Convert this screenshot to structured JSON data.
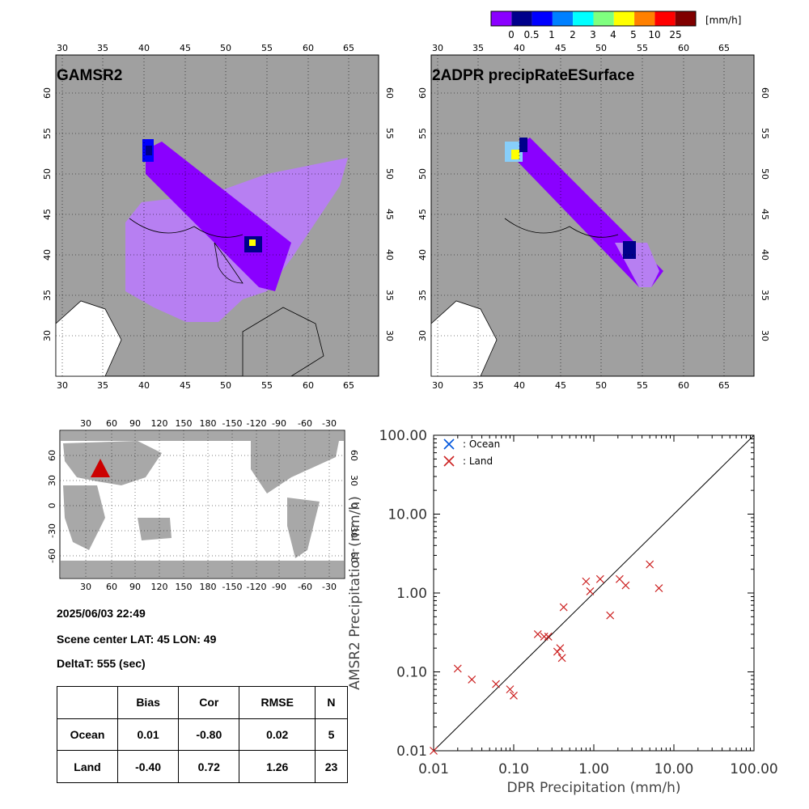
{
  "colorbar": {
    "unit_label": "[mm/h]",
    "tick_labels": [
      "0",
      "0.5",
      "1",
      "2",
      "3",
      "4",
      "5",
      "10",
      "25"
    ],
    "colors": [
      "#8a00ff",
      "#00008b",
      "#0000ff",
      "#0080ff",
      "#00ffff",
      "#7fff7f",
      "#ffff00",
      "#ff8000",
      "#ff0000",
      "#800000"
    ]
  },
  "map_left": {
    "title": "GAMSR2",
    "lon_ticks": [
      "30",
      "35",
      "40",
      "45",
      "50",
      "55",
      "60",
      "65"
    ],
    "lat_ticks": [
      "30",
      "35",
      "40",
      "45",
      "50",
      "55",
      "60"
    ]
  },
  "map_right": {
    "title": "2ADPR precipRateESurface",
    "lon_ticks": [
      "30",
      "35",
      "40",
      "45",
      "50",
      "55",
      "60",
      "65"
    ],
    "lat_ticks": [
      "30",
      "35",
      "40",
      "45",
      "50",
      "55",
      "60"
    ]
  },
  "world_map": {
    "lon_ticks": [
      "30",
      "60",
      "90",
      "120",
      "150",
      "180",
      "-150",
      "-120",
      "-90",
      "-60",
      "-30"
    ],
    "lat_ticks": [
      "60",
      "30",
      "0",
      "-30",
      "-60"
    ],
    "marker_color": "#cc0000"
  },
  "info": {
    "datetime": "2025/06/03 22:49",
    "scene_center": "Scene center LAT: 45   LON:  49",
    "delta_t": "DeltaT:  555 (sec)"
  },
  "stats_table": {
    "headers": [
      "",
      "Bias",
      "Cor",
      "RMSE",
      "N"
    ],
    "rows": [
      [
        "Ocean",
        "0.01",
        "-0.80",
        "0.02",
        "5"
      ],
      [
        "Land",
        "-0.40",
        "0.72",
        "1.26",
        "23"
      ]
    ]
  },
  "chart_data": {
    "type": "scatter",
    "xlabel": "DPR Precipitation (mm/h)",
    "ylabel": "AMSR2 Precipitation (mm/h)",
    "xscale": "log",
    "yscale": "log",
    "xlim": [
      0.01,
      100
    ],
    "ylim": [
      0.01,
      100
    ],
    "x_tick_labels": [
      "0.01",
      "0.10",
      "1.00",
      "10.00",
      "100.00"
    ],
    "y_tick_labels": [
      "0.01",
      "0.10",
      "1.00",
      "10.00",
      "100.00"
    ],
    "legend": [
      {
        "label": ": Ocean",
        "color": "#0055dd"
      },
      {
        "label": ": Land",
        "color": "#cc2222"
      }
    ],
    "legend_position": "top-left",
    "series": [
      {
        "name": "Land",
        "color": "#cc2222",
        "points": [
          [
            0.02,
            0.11
          ],
          [
            0.03,
            0.08
          ],
          [
            0.06,
            0.07
          ],
          [
            0.09,
            0.06
          ],
          [
            0.1,
            0.05
          ],
          [
            0.2,
            0.3
          ],
          [
            0.24,
            0.28
          ],
          [
            0.27,
            0.28
          ],
          [
            0.35,
            0.18
          ],
          [
            0.38,
            0.2
          ],
          [
            0.4,
            0.15
          ],
          [
            0.42,
            0.66
          ],
          [
            0.8,
            1.4
          ],
          [
            0.9,
            1.05
          ],
          [
            1.2,
            1.5
          ],
          [
            1.6,
            0.52
          ],
          [
            2.1,
            1.5
          ],
          [
            2.5,
            1.25
          ],
          [
            5.0,
            2.3
          ],
          [
            6.5,
            1.15
          ],
          [
            0.01,
            0.01
          ]
        ]
      }
    ]
  }
}
